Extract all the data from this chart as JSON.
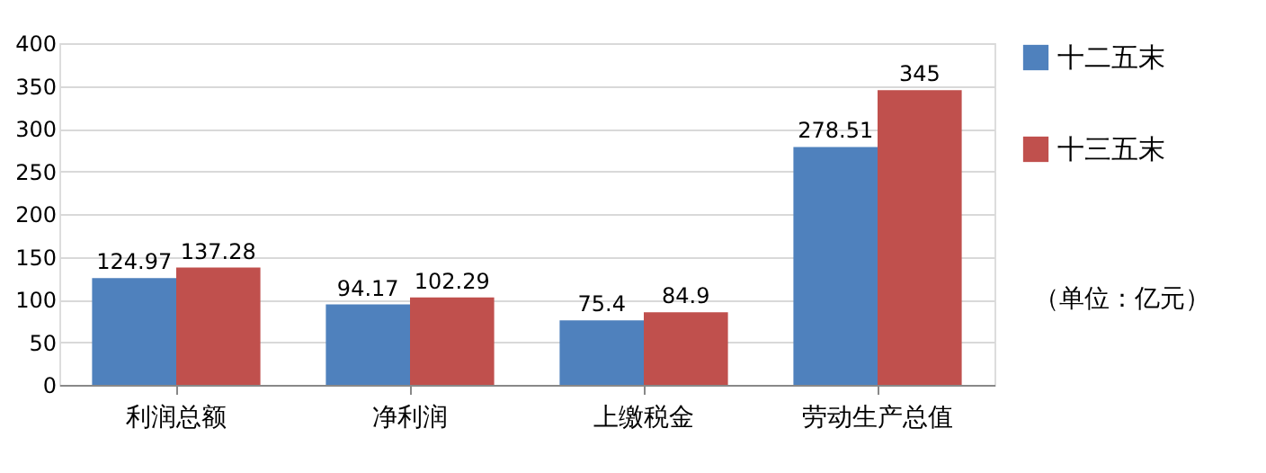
{
  "chart_data": {
    "type": "bar",
    "categories": [
      "利润总额",
      "净利润",
      "上缴税金",
      "劳动生产总值"
    ],
    "series": [
      {
        "name": "十二五末",
        "color": "#4f81bd",
        "values": [
          124.97,
          94.17,
          75.4,
          278.51
        ]
      },
      {
        "name": "十三五末",
        "color": "#c0504d",
        "values": [
          137.28,
          102.29,
          84.9,
          345
        ]
      }
    ],
    "ylim": [
      0,
      400
    ],
    "yticks": [
      0,
      50,
      100,
      150,
      200,
      250,
      300,
      350,
      400
    ],
    "grid": "y",
    "legend": "right",
    "data_labels": true,
    "annotations": [
      "（单位：亿元）"
    ]
  }
}
